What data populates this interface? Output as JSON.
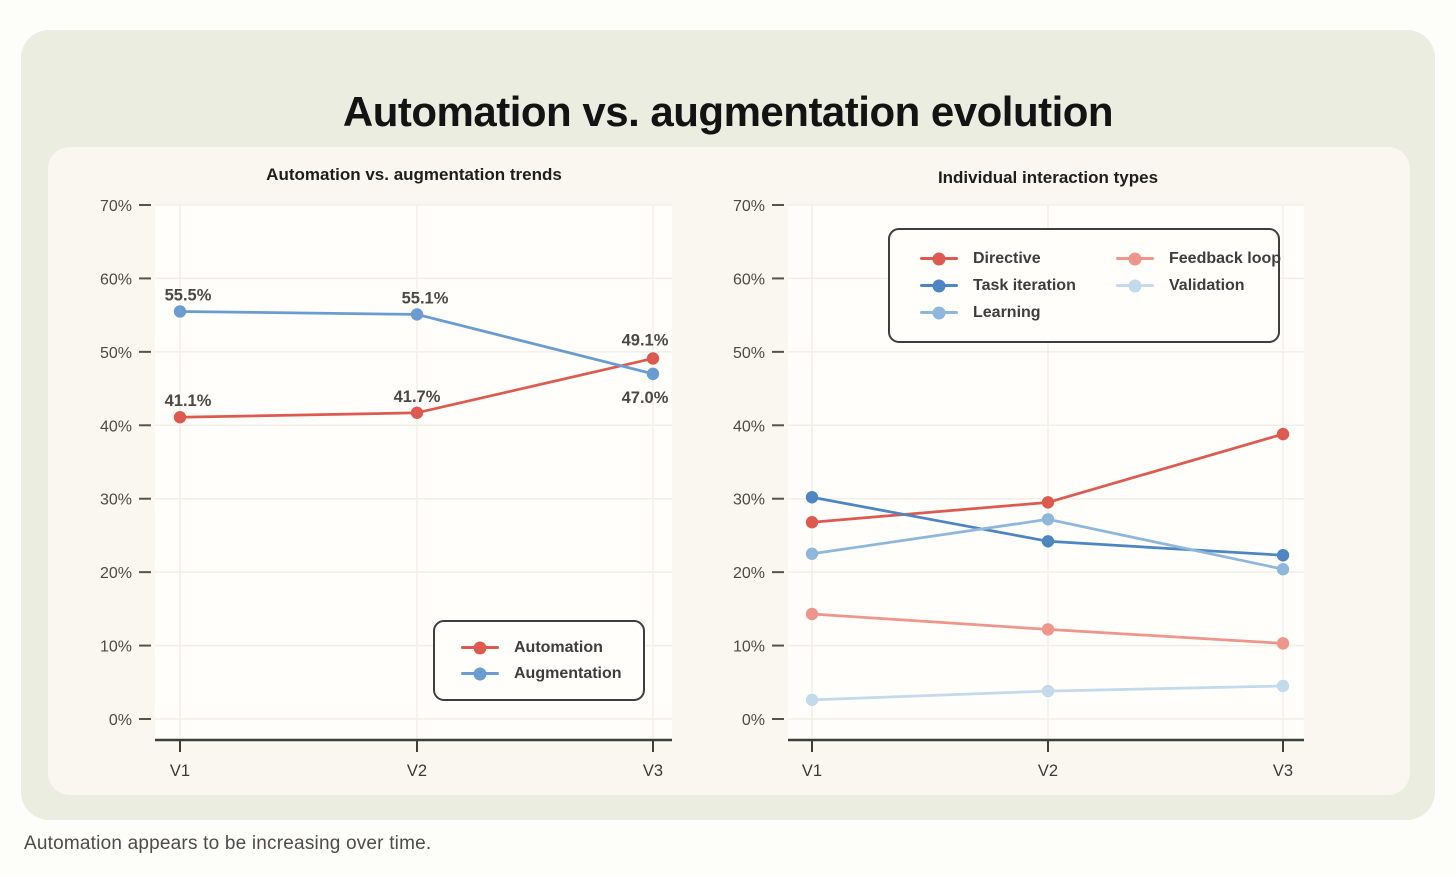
{
  "page": {
    "title": "Automation vs. augmentation evolution",
    "caption": "Automation appears to be increasing over time."
  },
  "colors": {
    "red": "#dc5a50",
    "salmon": "#ee958c",
    "blue_strong": "#4e86c2",
    "blue_medium": "#6a9cd2",
    "blue_light": "#8fb7dc",
    "blue_pale": "#c3d9ec",
    "axis": "#3e3e3c",
    "tick_text": "#4c4a45",
    "grid": "#f3efe7",
    "plot_bg": "#fffefb"
  },
  "chart_data": [
    {
      "type": "line",
      "title": "Automation vs. augmentation trends",
      "categories": [
        "V1",
        "V2",
        "V3"
      ],
      "ylim": [
        0,
        70
      ],
      "yticks": [
        "0%",
        "10%",
        "20%",
        "30%",
        "40%",
        "50%",
        "60%",
        "70%"
      ],
      "grid": true,
      "legend_position": "bottom-right",
      "series": [
        {
          "name": "Automation",
          "color": "#dc5a50",
          "values": [
            41.1,
            41.7,
            49.1
          ],
          "point_labels": [
            "41.1%",
            "41.7%",
            "49.1%"
          ]
        },
        {
          "name": "Augmentation",
          "color": "#6a9cd2",
          "values": [
            55.5,
            55.1,
            47.0
          ],
          "point_labels": [
            "55.5%",
            "55.1%",
            "47.0%"
          ]
        }
      ]
    },
    {
      "type": "line",
      "title": "Individual interaction types",
      "categories": [
        "V1",
        "V2",
        "V3"
      ],
      "ylim": [
        0,
        70
      ],
      "yticks": [
        "0%",
        "10%",
        "20%",
        "30%",
        "40%",
        "50%",
        "60%",
        "70%"
      ],
      "grid": true,
      "legend_position": "top-center",
      "series": [
        {
          "name": "Directive",
          "color": "#dc5a50",
          "values": [
            26.8,
            29.5,
            38.8
          ]
        },
        {
          "name": "Task iteration",
          "color": "#4e86c2",
          "values": [
            30.2,
            24.2,
            22.3
          ]
        },
        {
          "name": "Learning",
          "color": "#8fb7dc",
          "values": [
            22.5,
            27.2,
            20.4
          ]
        },
        {
          "name": "Feedback loop",
          "color": "#ee958c",
          "values": [
            14.3,
            12.2,
            10.3
          ]
        },
        {
          "name": "Validation",
          "color": "#c3d9ec",
          "values": [
            2.6,
            3.8,
            4.5
          ]
        }
      ]
    }
  ]
}
